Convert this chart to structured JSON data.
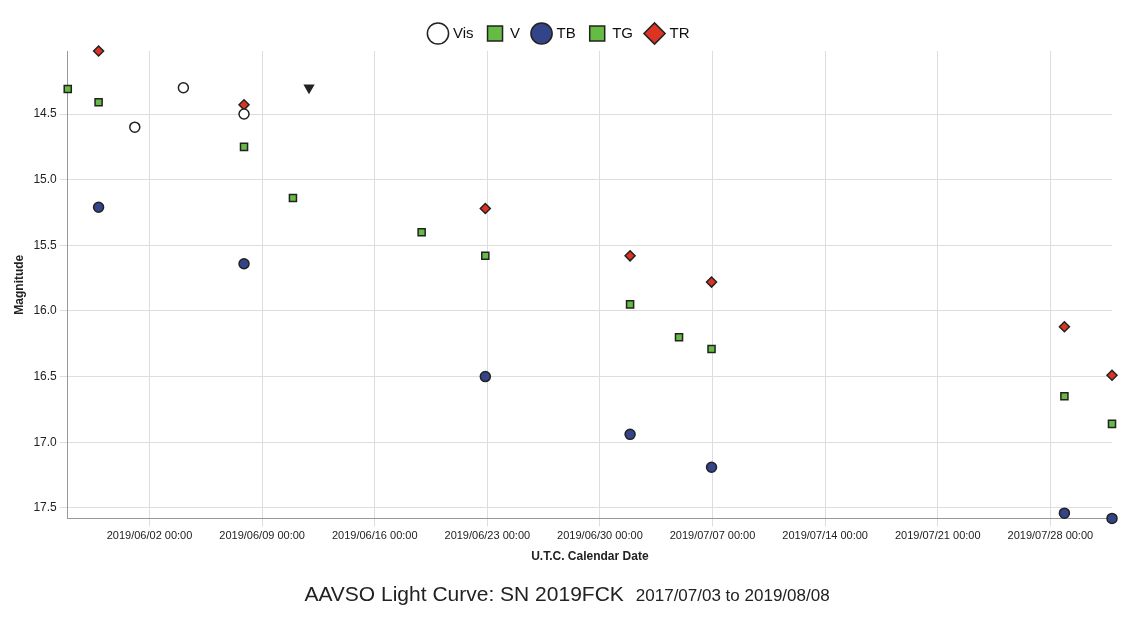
{
  "chart_data": {
    "type": "scatter",
    "title": "AAVSO Light Curve: SN 2019FCK",
    "subtitle": "2017/07/03 to 2019/08/08",
    "xlabel": "U.T.C. Calendar Date",
    "ylabel": "Magnitude",
    "xlim": [
      "2019-05-27T22:00",
      "2019-07-31T20:00"
    ],
    "xticks": [
      {
        "value": "2019-06-02T00:00",
        "label": "2019/06/02 00:00"
      },
      {
        "value": "2019-06-09T00:00",
        "label": "2019/06/09 00:00"
      },
      {
        "value": "2019-06-16T00:00",
        "label": "2019/06/16 00:00"
      },
      {
        "value": "2019-06-23T00:00",
        "label": "2019/06/23 00:00"
      },
      {
        "value": "2019-06-30T00:00",
        "label": "2019/06/30 00:00"
      },
      {
        "value": "2019-07-07T00:00",
        "label": "2019/07/07 00:00"
      },
      {
        "value": "2019-07-14T00:00",
        "label": "2019/07/14 00:00"
      },
      {
        "value": "2019-07-21T00:00",
        "label": "2019/07/21 00:00"
      },
      {
        "value": "2019-07-28T00:00",
        "label": "2019/07/28 00:00"
      }
    ],
    "ylim": [
      17.58,
      14.02
    ],
    "yticks": [
      {
        "value": 14.5,
        "label": "14.5"
      },
      {
        "value": 15,
        "label": "15.0"
      },
      {
        "value": 15.5,
        "label": "15.5"
      },
      {
        "value": 16,
        "label": "16.0"
      },
      {
        "value": 16.5,
        "label": "16.5"
      },
      {
        "value": 17,
        "label": "17.0"
      },
      {
        "value": 17.5,
        "label": "17.5"
      }
    ],
    "grid": true,
    "legend": "top",
    "series": [
      {
        "name": "Vis",
        "color": "#ffffff",
        "marker": "circle",
        "x": [
          "2019-06-01T02:00",
          "2019-06-04T02:30",
          "2019-06-07T21:00"
        ],
        "values": [
          14.6,
          14.3,
          14.5
        ]
      },
      {
        "name": "V",
        "color": "#66bb44",
        "marker": "square",
        "x": [
          "2019-05-27T22:00",
          "2019-06-10T22:00",
          "2019-06-18T22:00",
          "2019-07-04T22:00"
        ],
        "values": [
          14.31,
          15.14,
          15.4,
          16.2
        ]
      },
      {
        "name": "TB",
        "color": "#334488",
        "marker": "circle",
        "x": [
          "2019-05-29T20:00",
          "2019-06-07T21:00",
          "2019-06-22T21:00",
          "2019-07-01T21:00",
          "2019-07-06T22:30",
          "2019-07-28T21:00",
          "2019-07-31T20:00"
        ],
        "values": [
          15.21,
          15.64,
          16.5,
          16.94,
          17.19,
          17.54,
          17.58
        ]
      },
      {
        "name": "TG",
        "color": "#66bb44",
        "marker": "square",
        "x": [
          "2019-05-29T20:00",
          "2019-06-07T21:00",
          "2019-06-22T21:00",
          "2019-07-01T21:00",
          "2019-07-06T22:30",
          "2019-07-28T21:00",
          "2019-07-31T20:00"
        ],
        "values": [
          14.41,
          14.75,
          15.58,
          15.95,
          16.29,
          16.65,
          16.86
        ]
      },
      {
        "name": "TR",
        "color": "#dd3322",
        "marker": "diamond",
        "x": [
          "2019-05-29T20:00",
          "2019-06-07T21:00",
          "2019-06-22T21:00",
          "2019-07-01T21:00",
          "2019-07-06T22:30",
          "2019-07-28T21:00",
          "2019-07-31T20:00"
        ],
        "values": [
          14.02,
          14.43,
          15.22,
          15.58,
          15.78,
          16.12,
          16.49
        ]
      },
      {
        "color": "#222222",
        "marker": "triangle",
        "x": [
          "2019-06-11T22:00"
        ],
        "values": [
          14.3
        ]
      }
    ]
  }
}
